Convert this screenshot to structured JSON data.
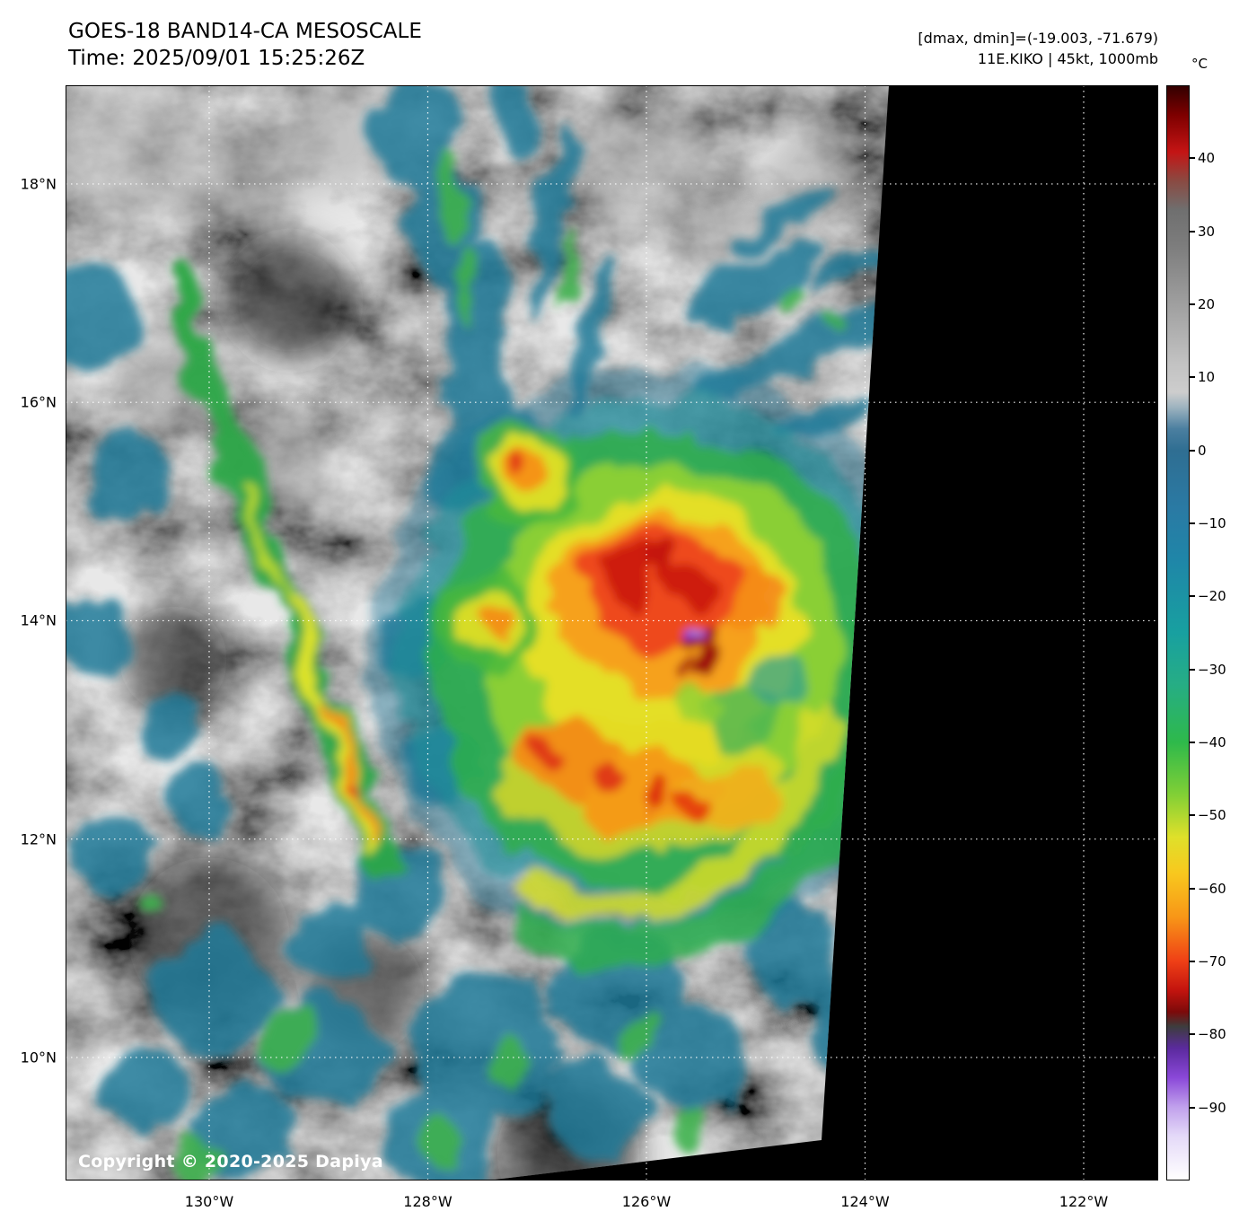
{
  "header": {
    "title": "GOES-18 BAND14-CA MESOSCALE",
    "time": "Time: 2025/09/01 15:25:26Z",
    "dmax_dmin": "[dmax, dmin]=(-19.003, -71.679)",
    "storm_info": "11E.KIKO | 45kt, 1000mb"
  },
  "map": {
    "copyright": "Copyright © 2020-2025 Dapiya",
    "lat_labels": [
      {
        "label": "18°N",
        "value": 18
      },
      {
        "label": "16°N",
        "value": 16
      },
      {
        "label": "14°N",
        "value": 14
      },
      {
        "label": "12°N",
        "value": 12
      },
      {
        "label": "10°N",
        "value": 10
      }
    ],
    "lon_labels": [
      {
        "label": "130°W",
        "value": -130
      },
      {
        "label": "128°W",
        "value": -128
      },
      {
        "label": "126°W",
        "value": -126
      },
      {
        "label": "124°W",
        "value": -124
      },
      {
        "label": "122°W",
        "value": -122
      }
    ]
  },
  "colorbar": {
    "unit": "°C",
    "ticks": [
      {
        "label": "40",
        "value": 40
      },
      {
        "label": "30",
        "value": 30
      },
      {
        "label": "20",
        "value": 20
      },
      {
        "label": "10",
        "value": 10
      },
      {
        "label": "0",
        "value": 0
      },
      {
        "label": "−10",
        "value": -10
      },
      {
        "label": "−20",
        "value": -20
      },
      {
        "label": "−30",
        "value": -30
      },
      {
        "label": "−40",
        "value": -40
      },
      {
        "label": "−50",
        "value": -50
      },
      {
        "label": "−60",
        "value": -60
      },
      {
        "label": "−70",
        "value": -70
      },
      {
        "label": "−80",
        "value": -80
      },
      {
        "label": "−90",
        "value": -90
      }
    ],
    "stops": [
      {
        "value": 50,
        "color": "#330000"
      },
      {
        "value": 46,
        "color": "#7e0000"
      },
      {
        "value": 41,
        "color": "#c41414"
      },
      {
        "value": 37,
        "color": "#8a4a42"
      },
      {
        "value": 33,
        "color": "#6f6f6f"
      },
      {
        "value": 28,
        "color": "#7d7d7d"
      },
      {
        "value": 12,
        "color": "#c2c2c2"
      },
      {
        "value": 8,
        "color": "#cdcdcd"
      },
      {
        "value": 6,
        "color": "#9fb4c0"
      },
      {
        "value": 3,
        "color": "#4b7fa0"
      },
      {
        "value": 0,
        "color": "#2f6e92"
      },
      {
        "value": -8,
        "color": "#2a7aa4"
      },
      {
        "value": -15,
        "color": "#1f86a8"
      },
      {
        "value": -25,
        "color": "#18a0a0"
      },
      {
        "value": -32,
        "color": "#26ad85"
      },
      {
        "value": -40,
        "color": "#2eb94b"
      },
      {
        "value": -47,
        "color": "#7fcf36"
      },
      {
        "value": -53,
        "color": "#dfe02a"
      },
      {
        "value": -58,
        "color": "#f8c81e"
      },
      {
        "value": -64,
        "color": "#f89617"
      },
      {
        "value": -70,
        "color": "#ef4016"
      },
      {
        "value": -74,
        "color": "#c3140e"
      },
      {
        "value": -77,
        "color": "#7c0a0a"
      },
      {
        "value": -79,
        "color": "#3d3d3d"
      },
      {
        "value": -82,
        "color": "#5b2a9e"
      },
      {
        "value": -86,
        "color": "#8a48d8"
      },
      {
        "value": -90,
        "color": "#c0a0ec"
      },
      {
        "value": -94,
        "color": "#e4d9f8"
      },
      {
        "value": -100,
        "color": "#ffffff"
      }
    ]
  }
}
